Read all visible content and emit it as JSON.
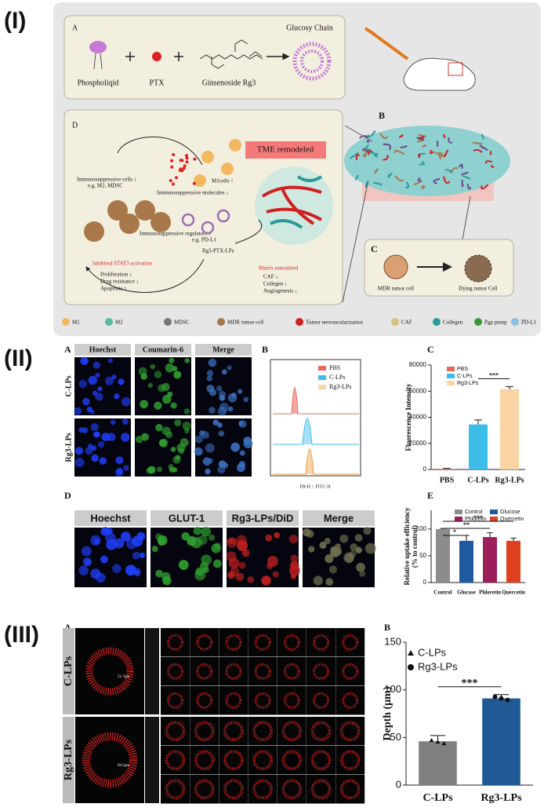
{
  "figure_I": {
    "label": "(I)",
    "panel_A": {
      "letter": "A",
      "phospholipid": "Phospholiqid",
      "ptx": "PTX",
      "rg3": "Ginsenoside Rg3",
      "chain": "Glucosy Chain"
    },
    "panel_B": {
      "letter": "B"
    },
    "panel_C": {
      "letter": "C",
      "mdr": "MDR tumor cell",
      "dying": "Dying tumor Cell"
    },
    "panel_D": {
      "letter": "D",
      "tme": "TME remodeled",
      "m1": "M1cells ↑",
      "cells": "Immunosuppressive cells ↓",
      "cells_eg": "e.g. M2, MDSC",
      "molecules": "Immunosuppressive molecules ↓",
      "regulators": "Immunosuppressive regulators ↓",
      "regulators_eg": "e.g. PD-L1",
      "lps": "Rg3-PTX-LPs",
      "stat3": "Inhibited STAT3 activation",
      "stat3_effects": [
        "Proliferation ↓",
        "Drug resistance ↓",
        "Apoptosis ↑"
      ],
      "matrix": "Matrix remodeled",
      "matrix_effects": [
        "CAF ↓",
        "Collegen ↓",
        "Angiogenesis ↓"
      ]
    },
    "legend": [
      "M1",
      "M2",
      "MDSC",
      "MDR tumor cell",
      "Tumor neovascularization",
      "CAF",
      "Collegen",
      "Pgp pump",
      "PD-L1"
    ]
  },
  "figure_II": {
    "label": "(II)",
    "panel_A": {
      "letter": "A",
      "columns": [
        "Hoechst",
        "Coumarin-6",
        "Merge"
      ],
      "rows": [
        "C-LPs",
        "Rg3-LPs"
      ]
    },
    "panel_B": {
      "letter": "B",
      "legend": [
        "PBS",
        "C-LPs",
        "Rg3-LPs"
      ],
      "xlabel": "FB-H :: FITC-H"
    },
    "panel_D": {
      "letter": "D",
      "columns": [
        "Hoechst",
        "GLUT-1",
        "Rg3-LPs/DiD",
        "Merge"
      ]
    }
  },
  "figure_III": {
    "label": "(III)",
    "panel_A": {
      "letter": "A",
      "rows": [
        "C-LPs",
        "Rg3-LPs"
      ],
      "scales": [
        "51.7μm",
        "94.5μm"
      ]
    }
  },
  "chart_data": [
    {
      "type": "bar",
      "letter": "C",
      "ylabel": "Fluorescence Intensity",
      "categories": [
        "PBS",
        "C-LPs",
        "Rg3-LPs"
      ],
      "values": [
        500,
        34500,
        61500
      ],
      "errors": [
        300,
        3500,
        2000
      ],
      "colors": [
        "#e8685a",
        "#3bbde8",
        "#fbd3a4"
      ],
      "legend": [
        "PBS",
        "C-LPs",
        "Rg3-LPs"
      ],
      "ylim": [
        0,
        80000
      ],
      "yticks": [
        0,
        20000,
        40000,
        60000,
        80000
      ],
      "annotations": [
        "***"
      ]
    },
    {
      "type": "bar",
      "letter": "E",
      "ylabel": [
        "Relative uptake efficiency",
        "(% to control)"
      ],
      "categories": [
        "Control",
        "Glucose",
        "Phloretin",
        "Quercetin"
      ],
      "values": [
        100,
        78,
        85,
        78
      ],
      "errors": [
        1,
        10,
        8,
        5
      ],
      "colors": [
        "#8c8c8c",
        "#1f5aa0",
        "#9c1f5a",
        "#e04020"
      ],
      "legend": [
        "Control",
        "Glucose",
        "Phloretin",
        "Quercetin"
      ],
      "ylim": [
        0,
        135
      ],
      "yticks": [
        0,
        50,
        100
      ],
      "annotations": [
        "*",
        "**",
        "***"
      ]
    },
    {
      "type": "bar",
      "letter": "B",
      "ylabel": "Depth (μm)",
      "categories": [
        "C-LPs",
        "Rg3-LPs"
      ],
      "values": [
        46,
        91
      ],
      "errors": [
        6,
        4
      ],
      "colors": [
        "#808080",
        "#1f5a96"
      ],
      "legend": [
        "C-LPs",
        "Rg3-LPs"
      ],
      "ylim": [
        0,
        150
      ],
      "yticks": [
        0,
        50,
        100,
        150
      ],
      "annotations": [
        "***"
      ]
    }
  ]
}
